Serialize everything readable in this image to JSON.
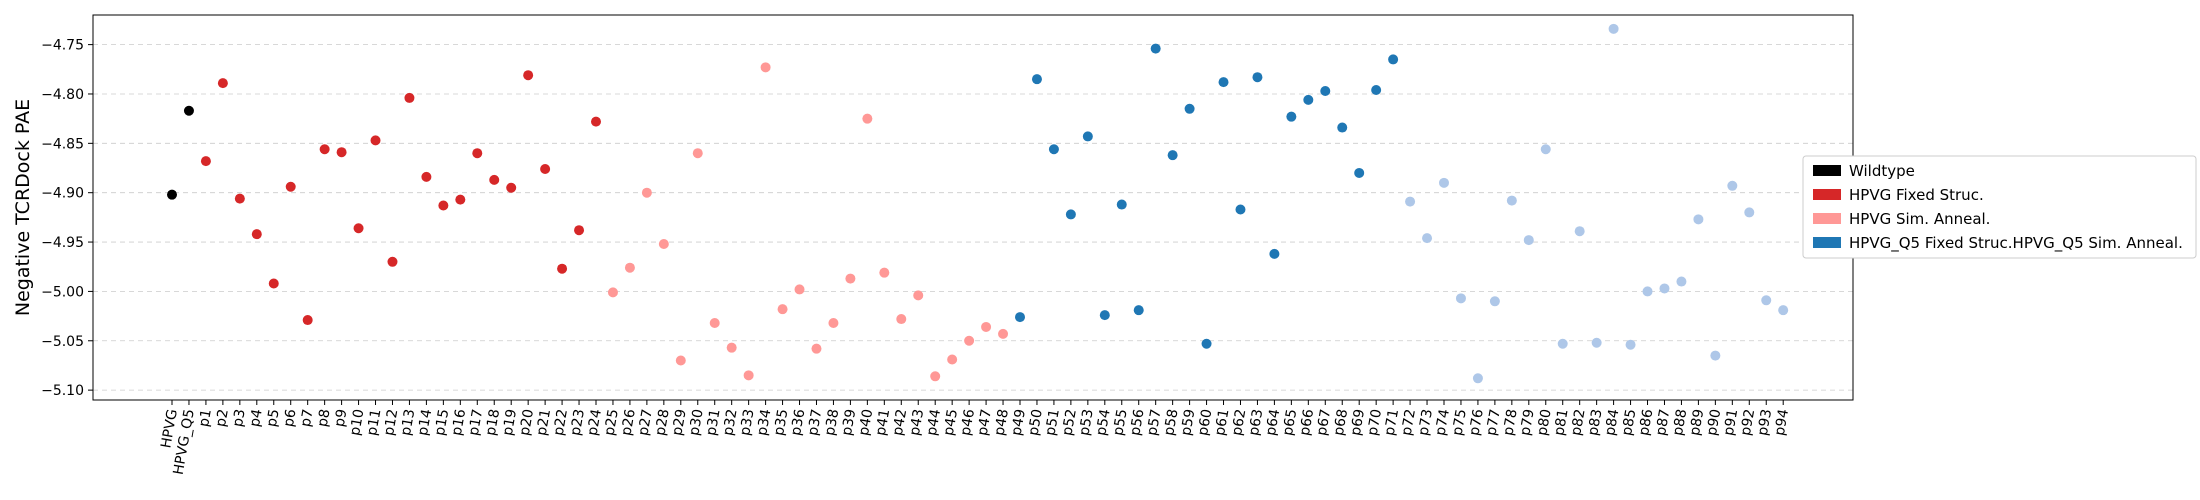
{
  "chart_data": {
    "type": "scatter",
    "title": "",
    "xlabel": "",
    "ylabel": "Negative TCRDock PAE",
    "ylim": [
      -5.11,
      -4.72
    ],
    "yticks": [
      -4.75,
      -4.8,
      -4.85,
      -4.9,
      -4.95,
      -5.0,
      -5.05,
      -5.1
    ],
    "ytick_labels": [
      "−4.75",
      "−4.80",
      "−4.85",
      "−4.90",
      "−4.95",
      "−5.00",
      "−5.05",
      "−5.10"
    ],
    "grid": "y-dashed",
    "legend_position": "outside-right",
    "categories": [
      "HPVG",
      "HPVG_Q5",
      "p1",
      "p2",
      "p3",
      "p4",
      "p5",
      "p6",
      "p7",
      "p8",
      "p9",
      "p10",
      "p11",
      "p12",
      "p13",
      "p14",
      "p15",
      "p16",
      "p17",
      "p18",
      "p19",
      "p20",
      "p21",
      "p22",
      "p23",
      "p24",
      "p25",
      "p26",
      "p27",
      "p28",
      "p29",
      "p30",
      "p31",
      "p32",
      "p33",
      "p34",
      "p35",
      "p36",
      "p37",
      "p38",
      "p39",
      "p40",
      "p41",
      "p42",
      "p43",
      "p44",
      "p45",
      "p46",
      "p47",
      "p48",
      "p49",
      "p50",
      "p51",
      "p52",
      "p53",
      "p54",
      "p55",
      "p56",
      "p57",
      "p58",
      "p59",
      "p60",
      "p61",
      "p62",
      "p63",
      "p64",
      "p65",
      "p66",
      "p67",
      "p68",
      "p69",
      "p70",
      "p71",
      "p72",
      "p73",
      "p74",
      "p75",
      "p76",
      "p77",
      "p78",
      "p79",
      "p80",
      "p81",
      "p82",
      "p83",
      "p84",
      "p85",
      "p86",
      "p87",
      "p88",
      "p89",
      "p90",
      "p91",
      "p92",
      "p93",
      "p94"
    ],
    "series": [
      {
        "name": "Wildtype",
        "color": "#000000",
        "points": [
          {
            "x": "HPVG",
            "y": -4.902
          },
          {
            "x": "HPVG_Q5",
            "y": -4.817
          }
        ]
      },
      {
        "name": "HPVG Fixed Struc.",
        "color": "#d62728",
        "points": [
          {
            "x": "p1",
            "y": -4.868
          },
          {
            "x": "p2",
            "y": -4.789
          },
          {
            "x": "p3",
            "y": -4.906
          },
          {
            "x": "p4",
            "y": -4.942
          },
          {
            "x": "p5",
            "y": -4.992
          },
          {
            "x": "p6",
            "y": -4.894
          },
          {
            "x": "p7",
            "y": -5.029
          },
          {
            "x": "p8",
            "y": -4.856
          },
          {
            "x": "p9",
            "y": -4.859
          },
          {
            "x": "p10",
            "y": -4.936
          },
          {
            "x": "p11",
            "y": -4.847
          },
          {
            "x": "p12",
            "y": -4.97
          },
          {
            "x": "p13",
            "y": -4.804
          },
          {
            "x": "p14",
            "y": -4.884
          },
          {
            "x": "p15",
            "y": -4.913
          },
          {
            "x": "p16",
            "y": -4.907
          },
          {
            "x": "p17",
            "y": -4.86
          },
          {
            "x": "p18",
            "y": -4.887
          },
          {
            "x": "p19",
            "y": -4.895
          },
          {
            "x": "p20",
            "y": -4.781
          },
          {
            "x": "p21",
            "y": -4.876
          },
          {
            "x": "p22",
            "y": -4.977
          },
          {
            "x": "p23",
            "y": -4.938
          },
          {
            "x": "p24",
            "y": -4.828
          }
        ]
      },
      {
        "name": "HPVG Sim. Anneal.",
        "color": "#ff9896",
        "points": [
          {
            "x": "p25",
            "y": -5.001
          },
          {
            "x": "p26",
            "y": -4.976
          },
          {
            "x": "p27",
            "y": -4.9
          },
          {
            "x": "p28",
            "y": -4.952
          },
          {
            "x": "p29",
            "y": -5.07
          },
          {
            "x": "p30",
            "y": -4.86
          },
          {
            "x": "p31",
            "y": -5.032
          },
          {
            "x": "p32",
            "y": -5.057
          },
          {
            "x": "p33",
            "y": -5.085
          },
          {
            "x": "p34",
            "y": -4.773
          },
          {
            "x": "p35",
            "y": -5.018
          },
          {
            "x": "p36",
            "y": -4.998
          },
          {
            "x": "p37",
            "y": -5.058
          },
          {
            "x": "p38",
            "y": -5.032
          },
          {
            "x": "p39",
            "y": -4.987
          },
          {
            "x": "p40",
            "y": -4.825
          },
          {
            "x": "p41",
            "y": -4.981
          },
          {
            "x": "p42",
            "y": -5.028
          },
          {
            "x": "p43",
            "y": -5.004
          },
          {
            "x": "p44",
            "y": -5.086
          },
          {
            "x": "p45",
            "y": -5.069
          },
          {
            "x": "p46",
            "y": -5.05
          },
          {
            "x": "p47",
            "y": -5.036
          },
          {
            "x": "p48",
            "y": -5.043
          }
        ]
      },
      {
        "name": "HPVG_Q5 Fixed Struc.",
        "color": "#1f77b4",
        "points": [
          {
            "x": "p49",
            "y": -5.026
          },
          {
            "x": "p50",
            "y": -4.785
          },
          {
            "x": "p51",
            "y": -4.856
          },
          {
            "x": "p52",
            "y": -4.922
          },
          {
            "x": "p53",
            "y": -4.843
          },
          {
            "x": "p54",
            "y": -5.024
          },
          {
            "x": "p55",
            "y": -4.912
          },
          {
            "x": "p56",
            "y": -5.019
          },
          {
            "x": "p57",
            "y": -4.754
          },
          {
            "x": "p58",
            "y": -4.862
          },
          {
            "x": "p59",
            "y": -4.815
          },
          {
            "x": "p60",
            "y": -5.053
          },
          {
            "x": "p61",
            "y": -4.788
          },
          {
            "x": "p62",
            "y": -4.917
          },
          {
            "x": "p63",
            "y": -4.783
          },
          {
            "x": "p64",
            "y": -4.962
          },
          {
            "x": "p65",
            "y": -4.823
          },
          {
            "x": "p66",
            "y": -4.806
          },
          {
            "x": "p67",
            "y": -4.797
          },
          {
            "x": "p68",
            "y": -4.834
          },
          {
            "x": "p69",
            "y": -4.88
          },
          {
            "x": "p70",
            "y": -4.796
          },
          {
            "x": "p71",
            "y": -4.765
          }
        ]
      },
      {
        "name": "HPVG_Q5 Sim. Anneal.",
        "color": "#aec7e8",
        "points": [
          {
            "x": "p72",
            "y": -4.909
          },
          {
            "x": "p73",
            "y": -4.946
          },
          {
            "x": "p74",
            "y": -4.89
          },
          {
            "x": "p75",
            "y": -5.007
          },
          {
            "x": "p76",
            "y": -5.088
          },
          {
            "x": "p77",
            "y": -5.01
          },
          {
            "x": "p78",
            "y": -4.908
          },
          {
            "x": "p79",
            "y": -4.948
          },
          {
            "x": "p80",
            "y": -4.856
          },
          {
            "x": "p81",
            "y": -5.053
          },
          {
            "x": "p82",
            "y": -4.939
          },
          {
            "x": "p83",
            "y": -5.052
          },
          {
            "x": "p84",
            "y": -4.734
          },
          {
            "x": "p85",
            "y": -5.054
          },
          {
            "x": "p86",
            "y": -5.0
          },
          {
            "x": "p87",
            "y": -4.997
          },
          {
            "x": "p88",
            "y": -4.99
          },
          {
            "x": "p89",
            "y": -4.927
          },
          {
            "x": "p90",
            "y": -5.065
          },
          {
            "x": "p91",
            "y": -4.893
          },
          {
            "x": "p92",
            "y": -4.92
          },
          {
            "x": "p93",
            "y": -5.009
          },
          {
            "x": "p94",
            "y": -5.019
          }
        ]
      }
    ],
    "legend": [
      {
        "label": "Wildtype",
        "color": "#000000"
      },
      {
        "label": "HPVG Fixed Struc.",
        "color": "#d62728"
      },
      {
        "label": "HPVG Sim. Anneal.",
        "color": "#ff9896"
      },
      {
        "label": "HPVG_Q5 Fixed Struc.HPVG_Q5 Sim. Anneal.",
        "color": "#1f77b4"
      }
    ]
  }
}
